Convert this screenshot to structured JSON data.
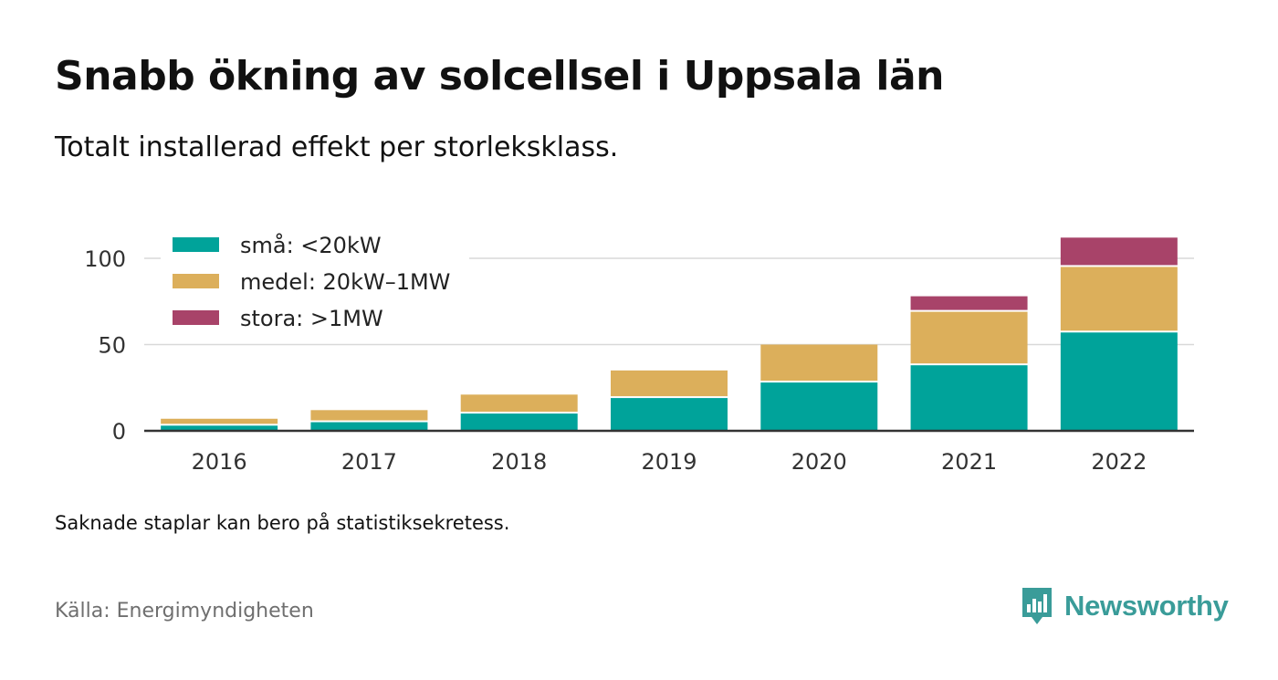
{
  "header": {
    "title": "Snabb ökning av solcellsel i Uppsala län",
    "subtitle": "Totalt installerad effekt per storleksklass."
  },
  "footer": {
    "note": "Saknade staplar kan bero på statistiksekretess.",
    "source": "Källa: Energimyndigheten",
    "brand": "Newsworthy"
  },
  "colors": {
    "sma": "#00a39a",
    "medel": "#dcaf5b",
    "stora": "#a84369",
    "grid": "#d9d9d9",
    "axis": "#333333",
    "brand": "#3a9c99"
  },
  "chart_data": {
    "type": "bar",
    "stacked": true,
    "categories": [
      "2016",
      "2017",
      "2018",
      "2019",
      "2020",
      "2021",
      "2022"
    ],
    "series": [
      {
        "name": "små: <20kW",
        "color": "#00a39a",
        "values": [
          3,
          5,
          10,
          19,
          28,
          38,
          57
        ]
      },
      {
        "name": "medel: 20kW–1MW",
        "color": "#dcaf5b",
        "values": [
          4,
          7,
          11,
          16,
          22,
          31,
          38
        ]
      },
      {
        "name": "stora: >1MW",
        "color": "#a84369",
        "values": [
          0,
          0,
          0,
          0,
          0,
          9,
          17
        ]
      }
    ],
    "yticks": [
      0,
      50,
      100
    ],
    "ylim": [
      0,
      112
    ],
    "grid": true,
    "legend": "top-left"
  }
}
